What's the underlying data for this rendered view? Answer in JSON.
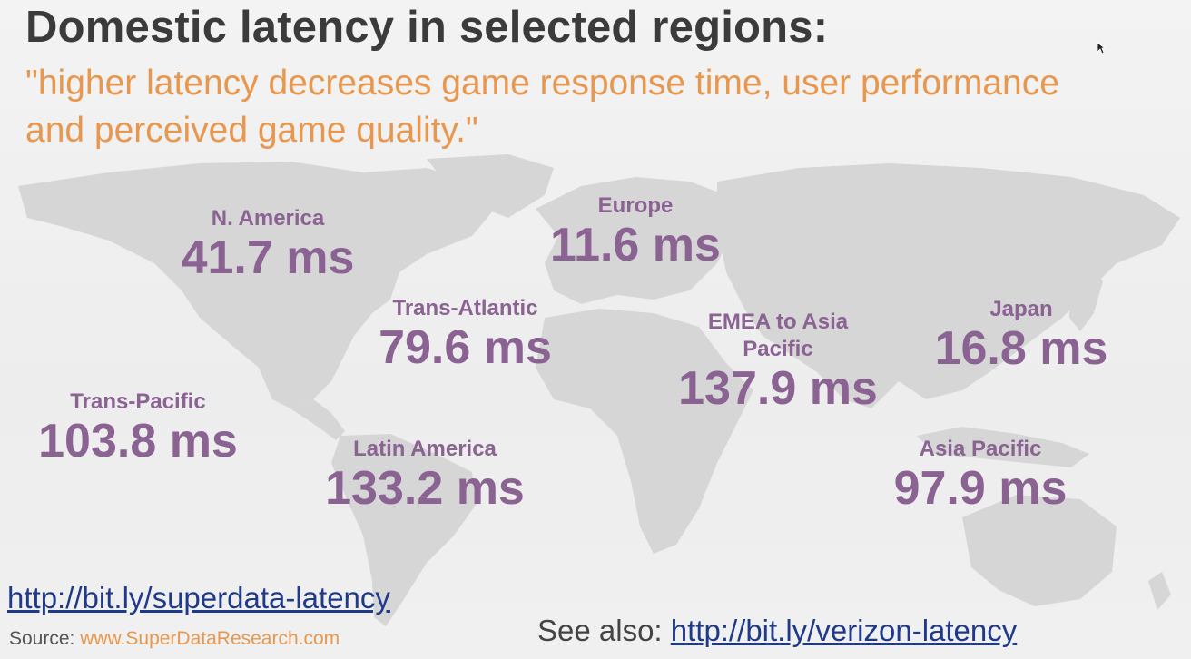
{
  "title": "Domestic latency in selected regions:",
  "quote_line1": "\"higher latency decreases game response time, user performance",
  "quote_line2": "and perceived game quality.\"",
  "regions": [
    {
      "name": "N. America",
      "value": "41.7 ms"
    },
    {
      "name": "Europe",
      "value": "11.6 ms"
    },
    {
      "name": "Trans-Atlantic",
      "value": "79.6 ms"
    },
    {
      "name": "EMEA to Asia Pacific",
      "value": "137.9 ms"
    },
    {
      "name": "Japan",
      "value": "16.8 ms"
    },
    {
      "name": "Trans-Pacific",
      "value": "103.8 ms"
    },
    {
      "name": "Latin America",
      "value": "133.2 ms"
    },
    {
      "name": "Asia Pacific",
      "value": "97.9 ms"
    }
  ],
  "link_main": "http://bit.ly/superdata-latency",
  "source_label": "Source:",
  "source_url": "www.SuperDataResearch.com",
  "see_also_label": "See also:",
  "see_also_link": "http://bit.ly/verizon-latency",
  "colors": {
    "title": "#3b3b3b",
    "quote": "#e8974e",
    "region": "#8a6392",
    "link": "#1f3a8a",
    "land": "#d4d4d4"
  }
}
